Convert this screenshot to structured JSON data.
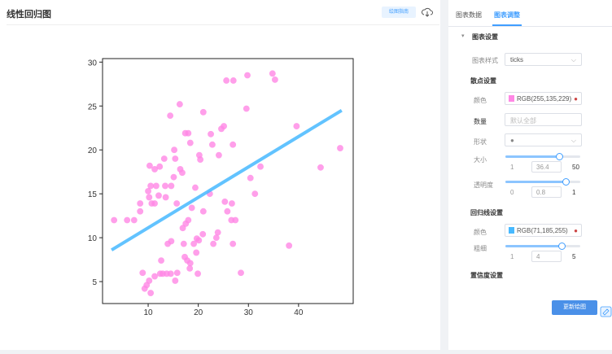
{
  "header": {
    "title": "线性回归图",
    "guide_button": "绘图指南"
  },
  "chart": {
    "type": "scatter",
    "x": [
      3.2,
      5.8,
      7.2,
      8.4,
      8.4,
      8.9,
      9.3,
      9.7,
      10.2,
      10.5,
      10.3,
      10.0,
      10.2,
      10.7,
      11.3,
      10.5,
      11.6,
      11.3,
      12.3,
      12.1,
      12.4,
      11.3,
      12.6,
      12.9,
      13.7,
      14.5,
      13.4,
      13.2,
      13.5,
      13.9,
      14.6,
      14.4,
      15.1,
      15.4,
      15.2,
      15.7,
      14.6,
      16.3,
      16.4,
      16.8,
      16.9,
      17.4,
      18.0,
      17.5,
      18.0,
      18.4,
      18.7,
      17.3,
      17.8,
      18.3,
      18.4,
      17.1,
      19.1,
      19.6,
      19.7,
      20.1,
      20.2,
      20.4,
      19.4,
      21.0,
      21.0,
      20.9,
      19.9,
      15.8,
      15.4,
      22.3,
      22.5,
      22.8,
      23.0,
      23.6,
      23.9,
      24.1,
      24.6,
      25.1,
      25.3,
      25.6,
      25.8,
      26.6,
      26.7,
      26.9,
      27.0,
      26.9,
      27.4,
      28.5,
      29.8,
      29.6,
      30.4,
      31.3,
      32.4,
      34.8,
      35.3,
      38.1,
      39.6,
      44.4,
      48.3
    ],
    "y": [
      12.0,
      12.0,
      12.0,
      13.9,
      13.0,
      6.0,
      4.2,
      4.6,
      5.1,
      3.7,
      18.2,
      15.3,
      14.6,
      13.9,
      13.9,
      15.9,
      15.9,
      17.8,
      18.1,
      14.8,
      5.9,
      5.6,
      7.4,
      5.9,
      5.9,
      5.9,
      15.9,
      19.0,
      14.6,
      9.3,
      9.6,
      23.9,
      16.9,
      19.0,
      20.0,
      13.9,
      15.9,
      25.2,
      17.8,
      17.4,
      11.1,
      21.9,
      21.9,
      11.6,
      12.0,
      20.8,
      13.4,
      7.8,
      7.4,
      6.5,
      7.1,
      9.3,
      9.3,
      8.3,
      9.9,
      9.7,
      19.4,
      18.9,
      15.7,
      24.3,
      13.0,
      10.4,
      5.9,
      6.0,
      5.1,
      15.0,
      21.8,
      20.6,
      9.3,
      10.0,
      10.6,
      19.4,
      22.4,
      22.7,
      14.1,
      27.9,
      13.0,
      12.0,
      13.9,
      20.6,
      27.9,
      9.3,
      12.0,
      6.0,
      28.5,
      24.7,
      16.8,
      15.0,
      18.1,
      28.7,
      28.0,
      9.1,
      22.7,
      18.0,
      20.2
    ],
    "xlim": [
      0.9,
      50.9
    ],
    "ylim": [
      2.5,
      30.4
    ],
    "xticks": [
      10,
      20,
      30,
      40
    ],
    "yticks": [
      5,
      10,
      15,
      20,
      25,
      30
    ],
    "regression": {
      "x": [
        2.7,
        48.6
      ],
      "y": [
        8.6,
        24.5
      ]
    }
  },
  "panel": {
    "tabs": [
      "图表数据",
      "图表调整"
    ],
    "section": "图表设置",
    "style_label": "图表样式",
    "style_value": "ticks",
    "scatter_title": "散点设置",
    "scatter_color_label": "颜色",
    "scatter_color": "RGB(255,135,229)",
    "count_label": "数量",
    "count_placeholder": "默认全部",
    "shape_label": "形状",
    "size": {
      "label": "大小",
      "min": 1,
      "value": 36.4,
      "max": 50
    },
    "opacity": {
      "label": "透明度",
      "min": 0,
      "value": 0.8,
      "max": 1
    },
    "line_title": "回归线设置",
    "line_color_label": "颜色",
    "line_color": "RGB(71,185,255)",
    "width": {
      "label": "粗细",
      "min": 1,
      "value": 4,
      "max": 5
    },
    "confidence_title": "置信度设置",
    "update_button": "更新绘图"
  }
}
